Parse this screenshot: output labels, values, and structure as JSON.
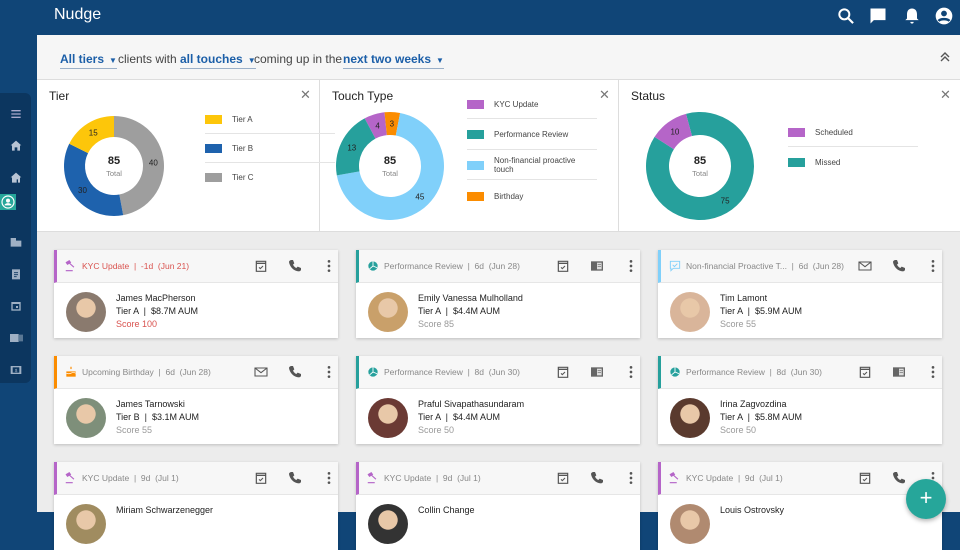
{
  "app": {
    "title": "Nudge"
  },
  "header_icons": [
    "search-icon",
    "chat-icon",
    "bell-icon",
    "account-icon"
  ],
  "sidebar": {
    "items": [
      "menu-icon",
      "home-icon",
      "household-icon",
      "client-icon",
      "business-icon",
      "clipboard-icon",
      "calendar-icon",
      "contact-card-icon",
      "dollar-icon"
    ],
    "active": 3
  },
  "filter": {
    "tiers": "All tiers",
    "text1": "clients with",
    "touches": "all touches",
    "text2": "coming up in the",
    "period": "next two weeks"
  },
  "chart_data": [
    {
      "type": "pie",
      "title": "Tier",
      "center_value": "85",
      "center_label": "Total",
      "categories": [
        "Tier A",
        "Tier B",
        "Tier C"
      ],
      "values": [
        15,
        30,
        40
      ],
      "colors": [
        "#fdc60a",
        "#1e62ad",
        "#9e9e9e"
      ],
      "draw_order": [
        2,
        1,
        0
      ],
      "start_deg": 0
    },
    {
      "type": "pie",
      "title": "Touch Type",
      "center_value": "85",
      "center_label": "Total",
      "categories": [
        "KYC Update",
        "Performance Review",
        "Non-financial proactive touch",
        "Birthday"
      ],
      "values": [
        4,
        13,
        45,
        3
      ],
      "colors": [
        "#b565c8",
        "#26a09c",
        "#80d0fa",
        "#fb8c00"
      ],
      "draw_order": [
        0,
        3,
        2,
        1
      ],
      "start_deg": -28
    },
    {
      "type": "pie",
      "title": "Status",
      "center_value": "85",
      "center_label": "Total",
      "categories": [
        "Scheduled",
        "Missed"
      ],
      "values": [
        10,
        75
      ],
      "colors": [
        "#b565c8",
        "#26a09c"
      ],
      "draw_order": [
        1,
        0
      ],
      "start_deg": -15
    }
  ],
  "cards": [
    {
      "type": "kyc",
      "title": "KYC Update",
      "due": "-1d  (Jun 21)",
      "overdue": true,
      "actions": [
        "calendar-check",
        "phone",
        "more"
      ],
      "name": "James MacPherson",
      "info": "Tier A  |  $8.7M AUM",
      "score": "Score 100",
      "avatar": "#8a7a6e"
    },
    {
      "type": "perf",
      "title": "Performance Review",
      "due": "6d  (Jun 28)",
      "actions": [
        "calendar-check",
        "newspaper",
        "more"
      ],
      "name": "Emily Vanessa Mulholland",
      "info": "Tier A  |  $4.4M AUM",
      "score": "Score 85",
      "avatar": "#c9a06a"
    },
    {
      "type": "nonfin",
      "title": "Non-financial Proactive T...",
      "due": "6d  (Jun 28)",
      "actions": [
        "mail",
        "phone",
        "more"
      ],
      "name": "Tim Lamont",
      "info": "Tier A  |  $5.9M AUM",
      "score": "Score 55",
      "avatar": "#d9b59a"
    },
    {
      "type": "bday",
      "title": "Upcoming Birthday",
      "due": "6d  (Jun 28)",
      "actions": [
        "mail",
        "phone",
        "more"
      ],
      "name": "James Tarnowski",
      "info": "Tier B  |  $3.1M AUM",
      "score": "Score 55",
      "avatar": "#7e8f7a"
    },
    {
      "type": "perf",
      "title": "Performance Review",
      "due": "8d  (Jun 30)",
      "actions": [
        "calendar-check",
        "newspaper",
        "more"
      ],
      "name": "Praful Sivapathasundaram",
      "info": "Tier A  |  $4.4M AUM",
      "score": "Score 50",
      "avatar": "#6b3a34"
    },
    {
      "type": "perf",
      "title": "Performance Review",
      "due": "8d  (Jun 30)",
      "actions": [
        "calendar-check",
        "newspaper",
        "more"
      ],
      "name": "Irina Zagvozdina",
      "info": "Tier A  |  $5.8M AUM",
      "score": "Score 50",
      "avatar": "#5a3a2e"
    },
    {
      "type": "kyc",
      "title": "KYC Update",
      "due": "9d  (Jul 1)",
      "actions": [
        "calendar-check",
        "phone",
        "more"
      ],
      "name": "Miriam Schwarzenegger",
      "info": "",
      "score": "",
      "avatar": "#a08c60"
    },
    {
      "type": "kyc",
      "title": "KYC Update",
      "due": "9d  (Jul 1)",
      "actions": [
        "calendar-check",
        "phone",
        "more"
      ],
      "name": "Collin Change",
      "info": "",
      "score": "",
      "avatar": "#333"
    },
    {
      "type": "kyc",
      "title": "KYC Update",
      "due": "9d  (Jul 1)",
      "actions": [
        "calendar-check",
        "phone",
        "more"
      ],
      "name": "Louis Ostrovsky",
      "info": "",
      "score": "",
      "avatar": "#b08a70"
    }
  ],
  "fab": "+",
  "colors": {
    "header": "#104577",
    "accent": "#26a69a",
    "kyc": "#b565c8",
    "perf": "#26a09c",
    "nonfin": "#80d0fa",
    "bday": "#fb8c00",
    "overdue": "#d9534f"
  }
}
